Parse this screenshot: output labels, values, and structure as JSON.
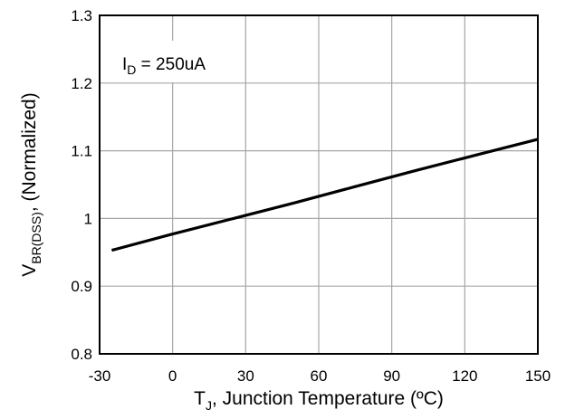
{
  "chart_data": {
    "type": "line",
    "xlabel": {
      "main": "T",
      "sub": "J",
      "rest": ", Junction Temperature (ºC)"
    },
    "ylabel": {
      "main": "V",
      "sub": "BR(DSS)",
      "rest": ", (Normalized)"
    },
    "annotation": {
      "main": "I",
      "sub": "D",
      "rest": " = 250uA"
    },
    "xlim": [
      -30,
      150
    ],
    "ylim": [
      0.8,
      1.3
    ],
    "xticks": [
      -30,
      0,
      30,
      60,
      90,
      120,
      150
    ],
    "yticks": [
      0.8,
      0.9,
      1,
      1.1,
      1.2,
      1.3
    ],
    "xtick_labels": [
      "-30",
      "0",
      "30",
      "60",
      "90",
      "120",
      "150"
    ],
    "ytick_labels": [
      "0.8",
      "0.9",
      "1",
      "1.1",
      "1.2",
      "1.3"
    ],
    "grid": true,
    "series": [
      {
        "x": [
          -25,
          0,
          25,
          50,
          75,
          100,
          125,
          150
        ],
        "y": [
          0.953,
          0.977,
          1.0,
          1.023,
          1.047,
          1.071,
          1.094,
          1.117
        ],
        "color": "#000000"
      }
    ]
  }
}
